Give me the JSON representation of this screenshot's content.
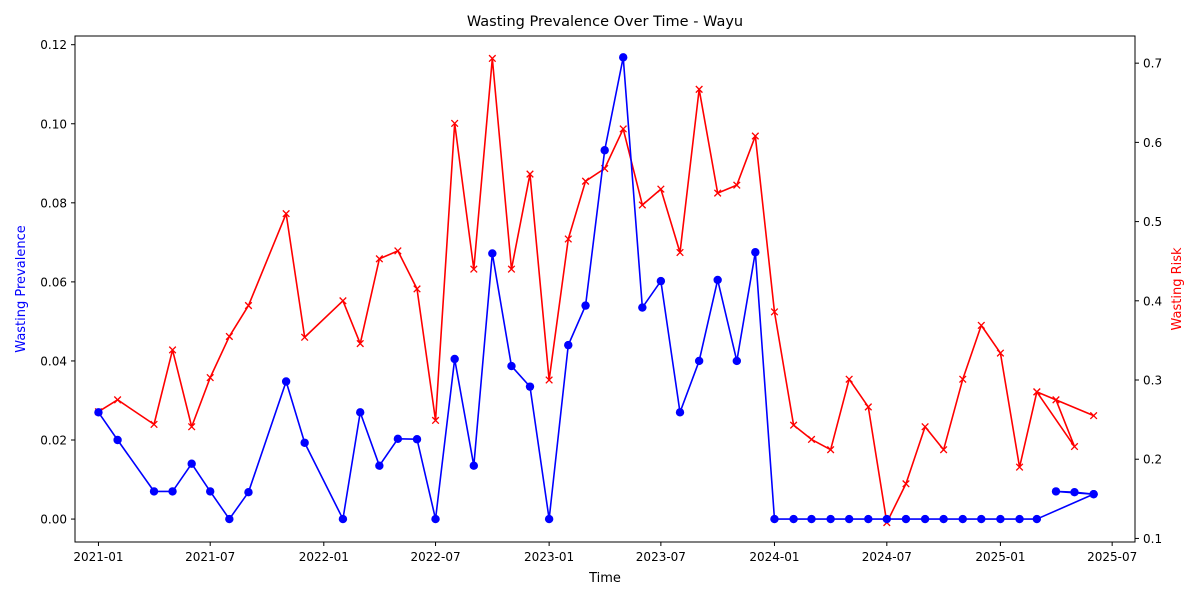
{
  "chart_data": {
    "type": "line",
    "title": "Wasting Prevalence Over Time - Wayu",
    "xlabel": "Time",
    "ylabel_left": "Wasting Prevalence",
    "ylabel_right": "Wasting Risk",
    "colors": {
      "left": "#0000ff",
      "right": "#ff0000",
      "axis": "#000000"
    },
    "x_ticks": [
      "2021-01",
      "2021-07",
      "2022-01",
      "2022-07",
      "2023-01",
      "2023-07",
      "2024-01",
      "2024-07",
      "2025-01",
      "2025-07"
    ],
    "xlim": [
      "2020-11-24",
      "2025-08-07"
    ],
    "y_left_ticks": [
      "0.00",
      "0.02",
      "0.04",
      "0.06",
      "0.08",
      "0.10",
      "0.12"
    ],
    "y_left_lim": [
      -0.0058,
      0.1222
    ],
    "y_right_ticks": [
      "0.1",
      "0.2",
      "0.3",
      "0.4",
      "0.5",
      "0.6",
      "0.7"
    ],
    "y_right_lim": [
      0.0955,
      0.7343
    ],
    "series": [
      {
        "axis": "left",
        "marker": "circle",
        "points": [
          [
            "2021-01-01",
            0.027
          ],
          [
            "2021-02-01",
            0.02
          ],
          [
            "2021-04-01",
            0.007
          ],
          [
            "2021-05-01",
            0.007
          ],
          [
            "2021-06-01",
            0.014
          ],
          [
            "2021-07-01",
            0.007
          ],
          [
            "2021-08-01",
            0.0
          ],
          [
            "2021-09-01",
            0.0068
          ],
          [
            "2021-11-01",
            0.0348
          ],
          [
            "2021-12-01",
            0.0193
          ],
          [
            "2022-02-01",
            0.0
          ],
          [
            "2022-03-01",
            0.027
          ],
          [
            "2022-04-01",
            0.0135
          ],
          [
            "2022-05-01",
            0.0203
          ],
          [
            "2022-06-01",
            0.0202
          ],
          [
            "2022-07-01",
            0.0
          ],
          [
            "2022-08-01",
            0.0405
          ],
          [
            "2022-09-01",
            0.0135
          ],
          [
            "2022-10-01",
            0.0672
          ],
          [
            "2022-11-01",
            0.0387
          ],
          [
            "2022-12-01",
            0.0335
          ],
          [
            "2023-01-01",
            0.0
          ],
          [
            "2023-02-01",
            0.044
          ],
          [
            "2023-03-01",
            0.054
          ],
          [
            "2023-04-01",
            0.0933
          ],
          [
            "2023-05-01",
            0.1168
          ],
          [
            "2023-06-01",
            0.0535
          ],
          [
            "2023-07-01",
            0.0602
          ],
          [
            "2023-08-01",
            0.027
          ],
          [
            "2023-09-01",
            0.04
          ],
          [
            "2023-10-01",
            0.0605
          ],
          [
            "2023-11-01",
            0.04
          ],
          [
            "2023-12-01",
            0.0675
          ],
          [
            "2024-01-01",
            0.0
          ],
          [
            "2024-02-01",
            0.0
          ],
          [
            "2024-03-01",
            0.0
          ],
          [
            "2024-04-01",
            0.0
          ],
          [
            "2024-05-01",
            0.0
          ],
          [
            "2024-06-01",
            0.0
          ],
          [
            "2024-07-01",
            0.0
          ],
          [
            "2024-08-01",
            0.0
          ],
          [
            "2024-09-01",
            0.0
          ],
          [
            "2024-10-01",
            0.0
          ],
          [
            "2024-11-01",
            0.0
          ],
          [
            "2024-12-01",
            0.0
          ],
          [
            "2025-01-01",
            0.0
          ],
          [
            "2025-02-01",
            0.0
          ],
          [
            "2025-03-01",
            0.0
          ],
          [
            "2025-06-01",
            0.0063
          ],
          [
            "2025-05-01",
            0.0068
          ],
          [
            "2025-04-01",
            0.007
          ],
          [
            "2025-06-01",
            0.0063
          ]
        ]
      },
      {
        "axis": "right",
        "marker": "x",
        "points": [
          [
            "2021-01-01",
            0.26
          ],
          [
            "2021-02-01",
            0.275
          ],
          [
            "2021-04-01",
            0.244
          ],
          [
            "2021-05-01",
            0.338
          ],
          [
            "2021-06-01",
            0.241
          ],
          [
            "2021-07-01",
            0.303
          ],
          [
            "2021-08-01",
            0.355
          ],
          [
            "2021-09-01",
            0.394
          ],
          [
            "2021-11-01",
            0.51
          ],
          [
            "2021-12-01",
            0.354
          ],
          [
            "2022-02-01",
            0.4
          ],
          [
            "2022-03-01",
            0.346
          ],
          [
            "2022-04-01",
            0.453
          ],
          [
            "2022-05-01",
            0.463
          ],
          [
            "2022-06-01",
            0.415
          ],
          [
            "2022-07-01",
            0.249
          ],
          [
            "2022-08-01",
            0.624
          ],
          [
            "2022-09-01",
            0.44
          ],
          [
            "2022-10-01",
            0.706
          ],
          [
            "2022-11-01",
            0.44
          ],
          [
            "2022-12-01",
            0.56
          ],
          [
            "2023-01-01",
            0.3
          ],
          [
            "2023-02-01",
            0.478
          ],
          [
            "2023-03-01",
            0.551
          ],
          [
            "2023-04-01",
            0.567
          ],
          [
            "2023-05-01",
            0.617
          ],
          [
            "2023-06-01",
            0.521
          ],
          [
            "2023-07-01",
            0.541
          ],
          [
            "2023-08-01",
            0.461
          ],
          [
            "2023-09-01",
            0.667
          ],
          [
            "2023-10-01",
            0.536
          ],
          [
            "2023-11-01",
            0.546
          ],
          [
            "2023-12-01",
            0.608
          ],
          [
            "2024-01-01",
            0.386
          ],
          [
            "2024-02-01",
            0.243
          ],
          [
            "2024-03-01",
            0.225
          ],
          [
            "2024-04-01",
            0.212
          ],
          [
            "2024-05-01",
            0.301
          ],
          [
            "2024-06-01",
            0.266
          ],
          [
            "2024-07-01",
            0.12
          ],
          [
            "2024-08-01",
            0.169
          ],
          [
            "2024-09-01",
            0.241
          ],
          [
            "2024-10-01",
            0.212
          ],
          [
            "2024-11-01",
            0.301
          ],
          [
            "2024-12-01",
            0.369
          ],
          [
            "2025-01-01",
            0.334
          ],
          [
            "2025-02-01",
            0.19
          ],
          [
            "2025-03-01",
            0.285
          ],
          [
            "2025-05-01",
            0.216
          ],
          [
            "2025-04-01",
            0.275
          ],
          [
            "2025-06-01",
            0.255
          ],
          [
            "2025-03-01",
            0.285
          ]
        ]
      }
    ]
  }
}
